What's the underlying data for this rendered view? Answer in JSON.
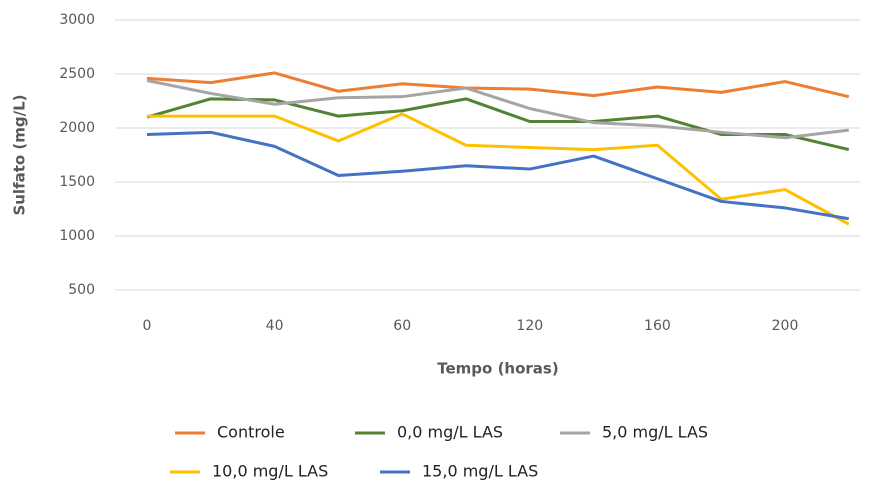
{
  "chart_data": {
    "type": "line",
    "y_label": "Sulfato (mg/L)",
    "x_label": "Tempo (horas)",
    "categories": [
      "0",
      null,
      "40",
      null,
      "60",
      null,
      "120",
      null,
      "160",
      null,
      "200",
      null
    ],
    "series": [
      {
        "name": "Controle",
        "color": "#ed7d31",
        "values": [
          2460,
          2420,
          2510,
          2340,
          2410,
          2370,
          2360,
          2300,
          2380,
          2330,
          2430,
          2290
        ]
      },
      {
        "name": "0,0 mg/L LAS",
        "color": "#548235",
        "values": [
          2100,
          2270,
          2260,
          2110,
          2160,
          2270,
          2060,
          2060,
          2110,
          1940,
          1940,
          1800
        ]
      },
      {
        "name": "5,0 mg/L LAS",
        "color": "#a5a5a5",
        "values": [
          2440,
          2320,
          2220,
          2280,
          2290,
          2370,
          2180,
          2050,
          2020,
          1960,
          1910,
          1980
        ]
      },
      {
        "name": "10,0 mg/L LAS",
        "color": "#ffc000",
        "values": [
          2110,
          2110,
          2110,
          1880,
          2130,
          1840,
          1820,
          1800,
          1840,
          1340,
          1430,
          1110
        ]
      },
      {
        "name": "15,0 mg/L LAS",
        "color": "#4472c4",
        "values": [
          1940,
          1960,
          1830,
          1560,
          1600,
          1650,
          1620,
          1740,
          1530,
          1320,
          1260,
          1160
        ]
      }
    ],
    "ylim": [
      500,
      3000
    ],
    "yticks": [
      500,
      1000,
      1500,
      2000,
      2500,
      3000
    ],
    "grid": true
  }
}
